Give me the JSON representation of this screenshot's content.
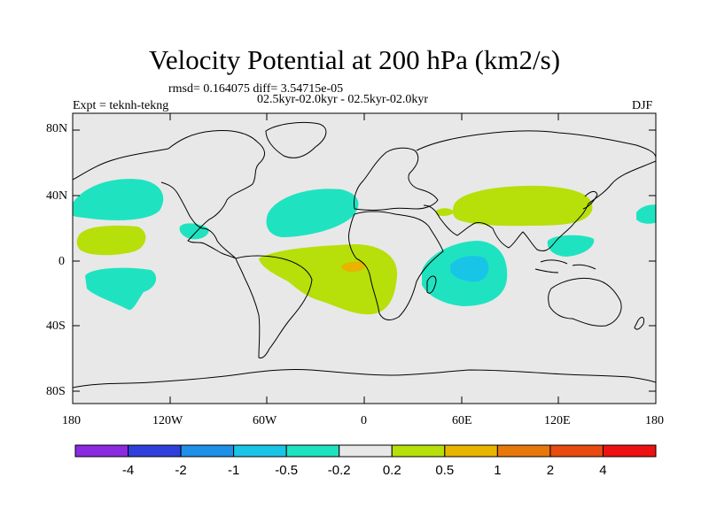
{
  "title": "Velocity Potential at 200 hPa (km2/s)",
  "stats": "rmsd= 0.164075 diff= 3.54715e-05",
  "expt_label": "Expt = teknh-tekng",
  "period_label": "02.5kyr-02.0kyr - 02.5kyr-02.0kyr",
  "season": "DJF",
  "y_ticks": [
    "80N",
    "40N",
    "0",
    "40S",
    "80S"
  ],
  "x_ticks": [
    "180",
    "120W",
    "60W",
    "0",
    "60E",
    "120E",
    "180"
  ],
  "colorbar": {
    "labels": [
      "-4",
      "-2",
      "-1",
      "-0.5",
      "-0.2",
      "0.2",
      "0.5",
      "1",
      "2",
      "4"
    ],
    "colors": [
      "#8a2be2",
      "#2f3fdb",
      "#1e90e8",
      "#19c5e6",
      "#1fe3c0",
      "#e8e8e8",
      "#b7df0a",
      "#e8b400",
      "#e8780a",
      "#e84a10",
      "#ee1111"
    ]
  },
  "colors": {
    "ocean": "#e8e8e8",
    "neg_weak": "#1fe3c0",
    "neg_mod": "#19c5e6",
    "pos_weak": "#b7df0a",
    "pos_mod": "#e8b400"
  }
}
